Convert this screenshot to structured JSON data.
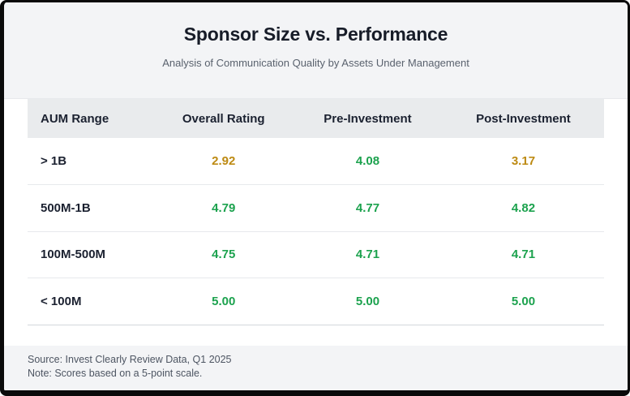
{
  "header": {
    "title": "Sponsor Size vs. Performance",
    "subtitle": "Analysis of Communication Quality by Assets Under Management"
  },
  "table": {
    "columns": [
      "AUM Range",
      "Overall Rating",
      "Pre-Investment",
      "Post-Investment"
    ],
    "rows": [
      {
        "label": "> 1B",
        "values": [
          "2.92",
          "4.08",
          "3.17"
        ],
        "tones": [
          "warning",
          "positive",
          "warning"
        ]
      },
      {
        "label": "500M-1B",
        "values": [
          "4.79",
          "4.77",
          "4.82"
        ],
        "tones": [
          "positive",
          "positive",
          "positive"
        ]
      },
      {
        "label": "100M-500M",
        "values": [
          "4.75",
          "4.71",
          "4.71"
        ],
        "tones": [
          "positive",
          "positive",
          "positive"
        ]
      },
      {
        "label": "< 100M",
        "values": [
          "5.00",
          "5.00",
          "5.00"
        ],
        "tones": [
          "positive",
          "positive",
          "positive"
        ]
      }
    ]
  },
  "footer": {
    "source": "Source: Invest Clearly Review Data, Q1 2025",
    "note": "Note: Scores based on a 5-point scale."
  },
  "colors": {
    "positive": "#1ca24e",
    "warning": "#bd8a12"
  },
  "chart_data": {
    "type": "table",
    "title": "Sponsor Size vs. Performance",
    "subtitle": "Analysis of Communication Quality by Assets Under Management",
    "columns": [
      "AUM Range",
      "Overall Rating",
      "Pre-Investment",
      "Post-Investment"
    ],
    "rows": [
      [
        "> 1B",
        2.92,
        4.08,
        3.17
      ],
      [
        "500M-1B",
        4.79,
        4.77,
        4.82
      ],
      [
        "100M-500M",
        4.75,
        4.71,
        4.71
      ],
      [
        "< 100M",
        5.0,
        5.0,
        5.0
      ]
    ],
    "value_scale": [
      0,
      5
    ],
    "color_coding": "values below 4.0 amber (#bd8a12), 4.0 and above green (#1ca24e)",
    "notes": [
      "Source: Invest Clearly Review Data, Q1 2025",
      "Note: Scores based on a 5-point scale."
    ]
  }
}
